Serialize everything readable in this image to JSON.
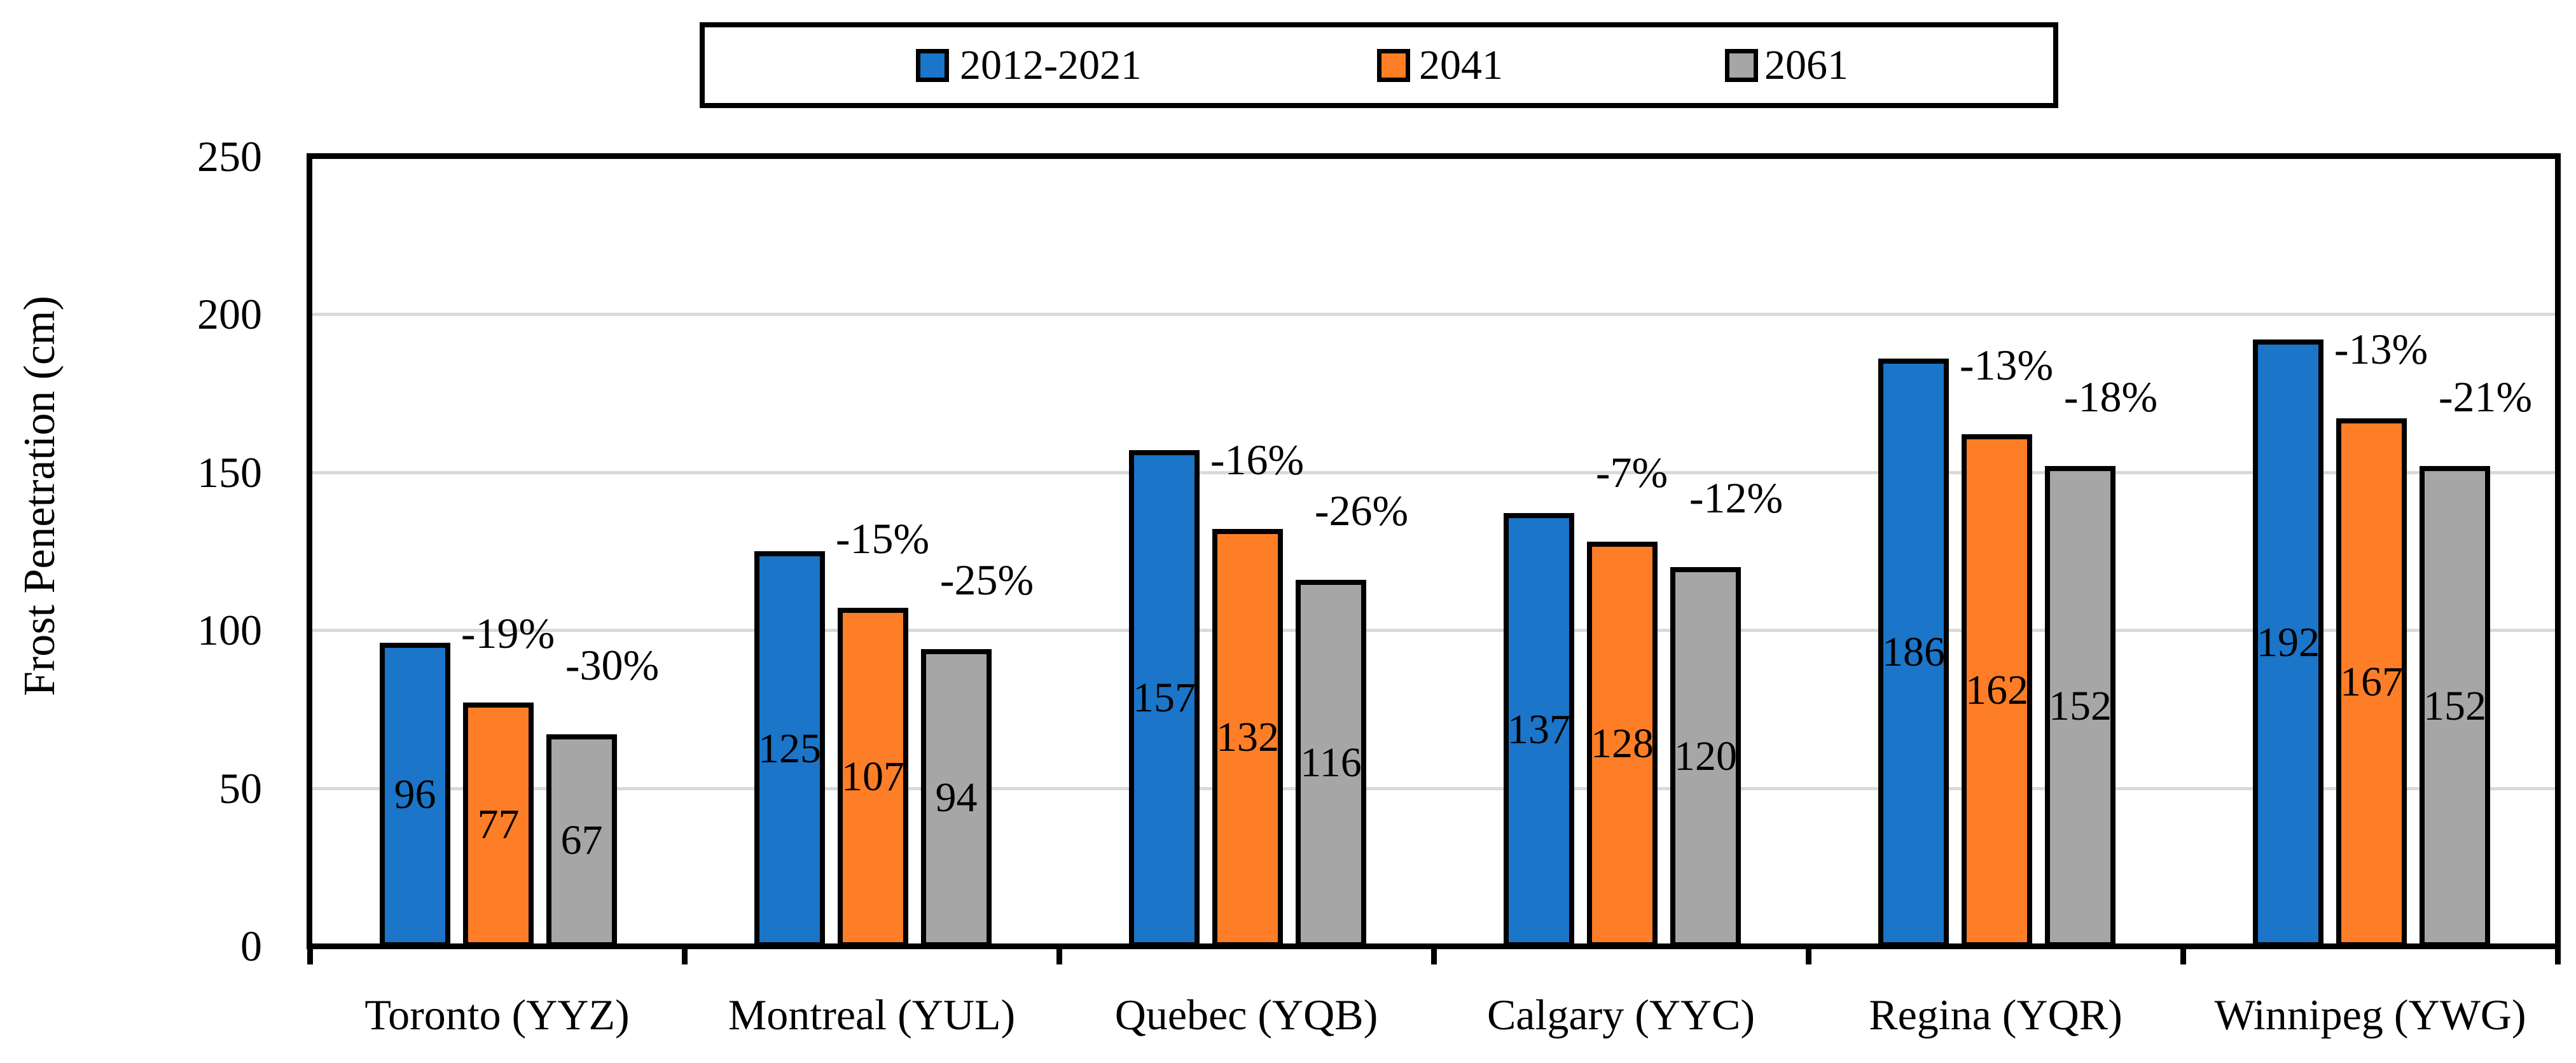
{
  "chart_data": {
    "type": "bar",
    "title": "",
    "xlabel": "",
    "ylabel": "Frost Penetration (cm)",
    "ylim": [
      0,
      250
    ],
    "yticks": [
      0,
      50,
      100,
      150,
      200,
      250
    ],
    "grid": true,
    "legend_position": "top-center",
    "categories": [
      "Toronto (YYZ)",
      "Montreal (YUL)",
      "Quebec (YQB)",
      "Calgary (YYC)",
      "Regina (YQR)",
      "Winnipeg (YWG)"
    ],
    "series": [
      {
        "name": "2012-2021",
        "color": "#1B75C8",
        "values": [
          96,
          125,
          157,
          137,
          186,
          192
        ],
        "pct_labels": [
          "",
          "",
          "",
          "",
          "",
          ""
        ]
      },
      {
        "name": "2041",
        "color": "#FD7E26",
        "values": [
          77,
          107,
          132,
          128,
          162,
          167
        ],
        "pct_labels": [
          "-19%",
          "-15%",
          "-16%",
          "-7%",
          "-13%",
          "-13%"
        ]
      },
      {
        "name": "2061",
        "color": "#A6A6A6",
        "values": [
          67,
          94,
          116,
          120,
          152,
          152
        ],
        "pct_labels": [
          "-30%",
          "-25%",
          "-26%",
          "-12%",
          "-18%",
          "-21%"
        ]
      }
    ],
    "colors": {
      "axis": "#000000",
      "gridline": "#D9D9D9",
      "bar_border": "#000000",
      "background": "#FFFFFF",
      "text": "#000000"
    }
  }
}
